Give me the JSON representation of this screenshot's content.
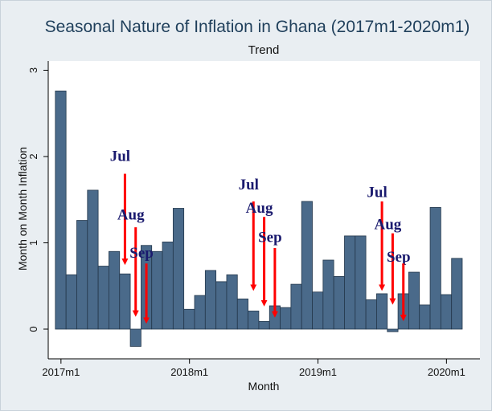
{
  "chart_data": {
    "type": "bar",
    "title": "Seasonal Nature of Inflation in Ghana (2017m1-2020m1)",
    "subtitle": "Trend",
    "xlabel": "Month",
    "ylabel": "Month on Month Inflation",
    "ylim": [
      -0.25,
      3.1
    ],
    "yticks": [
      0,
      1,
      2,
      3
    ],
    "xticks": [
      {
        "label": "2017m1",
        "index": 0
      },
      {
        "label": "2018m1",
        "index": 12
      },
      {
        "label": "2019m1",
        "index": 24
      },
      {
        "label": "2020m1",
        "index": 36
      }
    ],
    "values": [
      2.76,
      0.63,
      1.26,
      1.61,
      0.73,
      0.9,
      0.64,
      -0.2,
      0.97,
      0.9,
      1.01,
      1.4,
      0.23,
      0.39,
      0.68,
      0.55,
      0.63,
      0.35,
      0.21,
      0.09,
      0.27,
      0.25,
      0.52,
      1.48,
      0.43,
      0.8,
      0.61,
      1.08,
      1.08,
      0.34,
      0.41,
      -0.03,
      0.41,
      0.66,
      0.28,
      1.41,
      0.4,
      0.82
    ],
    "bar_color": "#4a6a8a",
    "arrow_color": "#ff0000",
    "annotations": [
      {
        "text": "Jul",
        "index": 6,
        "label_y": 1.95,
        "arrow_top": 1.8,
        "arrow_bottom": 0.78
      },
      {
        "text": "Aug",
        "index": 7,
        "label_y": 1.27,
        "arrow_top": 1.18,
        "arrow_bottom": 0.18
      },
      {
        "text": "Sep",
        "index": 8,
        "label_y": 0.83,
        "arrow_top": 0.76,
        "arrow_bottom": 0.1
      },
      {
        "text": "Jul",
        "index": 18,
        "label_y": 1.62,
        "arrow_top": 1.48,
        "arrow_bottom": 0.48
      },
      {
        "text": "Aug",
        "index": 19,
        "label_y": 1.35,
        "arrow_top": 1.3,
        "arrow_bottom": 0.3
      },
      {
        "text": "Sep",
        "index": 20,
        "label_y": 1.01,
        "arrow_top": 0.94,
        "arrow_bottom": 0.17
      },
      {
        "text": "Jul",
        "index": 30,
        "label_y": 1.53,
        "arrow_top": 1.48,
        "arrow_bottom": 0.48
      },
      {
        "text": "Aug",
        "index": 31,
        "label_y": 1.16,
        "arrow_top": 1.11,
        "arrow_bottom": 0.32
      },
      {
        "text": "Sep",
        "index": 32,
        "label_y": 0.78,
        "arrow_top": 0.76,
        "arrow_bottom": 0.13
      }
    ]
  }
}
